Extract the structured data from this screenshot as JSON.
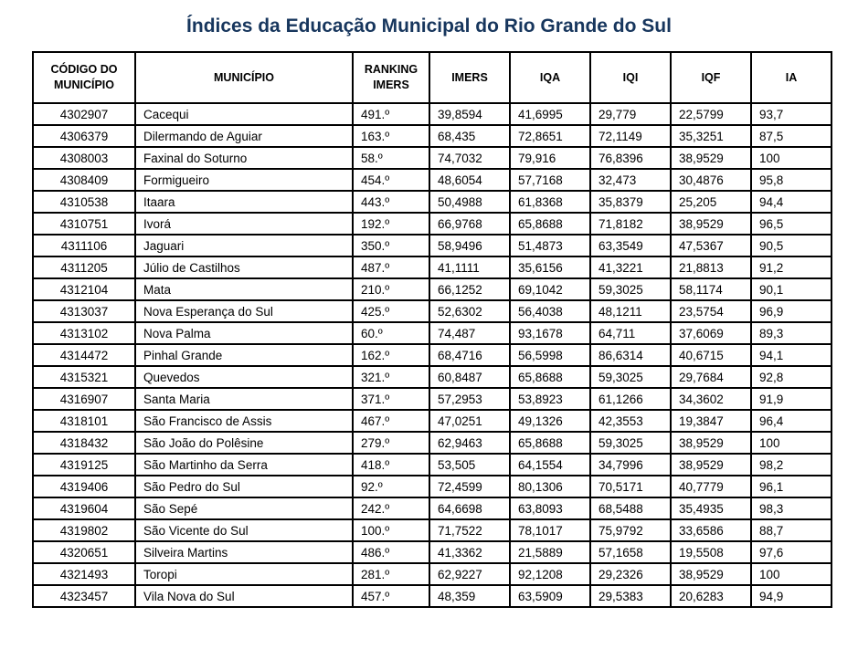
{
  "title": "Índices da Educação Municipal do Rio Grande do Sul",
  "colors": {
    "title_text": "#17365D",
    "table_border": "#000000",
    "body_text": "#000000",
    "background": "#ffffff"
  },
  "table": {
    "columns": [
      "CÓDIGO DO MUNICÍPIO",
      "MUNICÍPIO",
      "RANKING IMERS",
      "IMERS",
      "IQA",
      "IQI",
      "IQF",
      "IA"
    ],
    "rows": [
      [
        "4302907",
        "Cacequi",
        "491.º",
        "39,8594",
        "41,6995",
        "29,779",
        "22,5799",
        "93,7"
      ],
      [
        "4306379",
        "Dilermando de Aguiar",
        "163.º",
        "68,435",
        "72,8651",
        "72,1149",
        "35,3251",
        "87,5"
      ],
      [
        "4308003",
        "Faxinal do Soturno",
        "58.º",
        "74,7032",
        "79,916",
        "76,8396",
        "38,9529",
        "100"
      ],
      [
        "4308409",
        "Formigueiro",
        "454.º",
        "48,6054",
        "57,7168",
        "32,473",
        "30,4876",
        "95,8"
      ],
      [
        "4310538",
        "Itaara",
        "443.º",
        "50,4988",
        "61,8368",
        "35,8379",
        "25,205",
        "94,4"
      ],
      [
        "4310751",
        "Ivorá",
        "192.º",
        "66,9768",
        "65,8688",
        "71,8182",
        "38,9529",
        "96,5"
      ],
      [
        "4311106",
        "Jaguari",
        "350.º",
        "58,9496",
        "51,4873",
        "63,3549",
        "47,5367",
        "90,5"
      ],
      [
        "4311205",
        "Júlio de Castilhos",
        "487.º",
        "41,1111",
        "35,6156",
        "41,3221",
        "21,8813",
        "91,2"
      ],
      [
        "4312104",
        "Mata",
        "210.º",
        "66,1252",
        "69,1042",
        "59,3025",
        "58,1174",
        "90,1"
      ],
      [
        "4313037",
        "Nova Esperança do Sul",
        "425.º",
        "52,6302",
        "56,4038",
        "48,1211",
        "23,5754",
        "96,9"
      ],
      [
        "4313102",
        "Nova Palma",
        "60.º",
        "74,487",
        "93,1678",
        "64,711",
        "37,6069",
        "89,3"
      ],
      [
        "4314472",
        "Pinhal Grande",
        "162.º",
        "68,4716",
        "56,5998",
        "86,6314",
        "40,6715",
        "94,1"
      ],
      [
        "4315321",
        "Quevedos",
        "321.º",
        "60,8487",
        "65,8688",
        "59,3025",
        "29,7684",
        "92,8"
      ],
      [
        "4316907",
        "Santa Maria",
        "371.º",
        "57,2953",
        "53,8923",
        "61,1266",
        "34,3602",
        "91,9"
      ],
      [
        "4318101",
        "São Francisco de Assis",
        "467.º",
        "47,0251",
        "49,1326",
        "42,3553",
        "19,3847",
        "96,4"
      ],
      [
        "4318432",
        "São João do Polêsine",
        "279.º",
        "62,9463",
        "65,8688",
        "59,3025",
        "38,9529",
        "100"
      ],
      [
        "4319125",
        "São Martinho da Serra",
        "418.º",
        "53,505",
        "64,1554",
        "34,7996",
        "38,9529",
        "98,2"
      ],
      [
        "4319406",
        "São Pedro do Sul",
        "92.º",
        "72,4599",
        "80,1306",
        "70,5171",
        "40,7779",
        "96,1"
      ],
      [
        "4319604",
        "São Sepé",
        "242.º",
        "64,6698",
        "63,8093",
        "68,5488",
        "35,4935",
        "98,3"
      ],
      [
        "4319802",
        "São Vicente do Sul",
        "100.º",
        "71,7522",
        "78,1017",
        "75,9792",
        "33,6586",
        "88,7"
      ],
      [
        "4320651",
        "Silveira Martins",
        "486.º",
        "41,3362",
        "21,5889",
        "57,1658",
        "19,5508",
        "97,6"
      ],
      [
        "4321493",
        "Toropi",
        "281.º",
        "62,9227",
        "92,1208",
        "29,2326",
        "38,9529",
        "100"
      ],
      [
        "4323457",
        "Vila Nova do Sul",
        "457.º",
        "48,359",
        "63,5909",
        "29,5383",
        "20,6283",
        "94,9"
      ]
    ]
  }
}
